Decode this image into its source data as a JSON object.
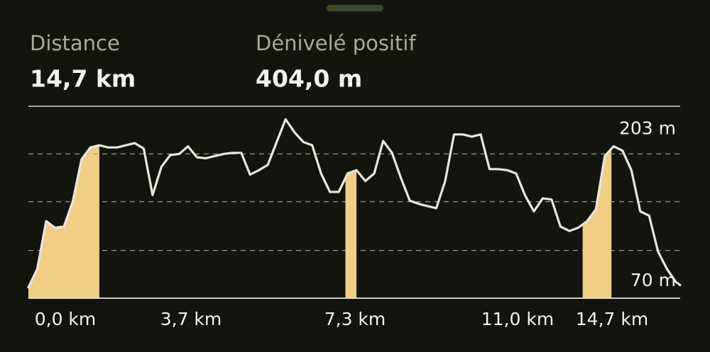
{
  "stats": [
    {
      "label": "Distance",
      "value": "14,7 km"
    },
    {
      "label": "Dénivelé positif",
      "value": "404,0 m"
    }
  ],
  "chart_data": {
    "type": "line",
    "x": [
      0,
      0.2,
      0.4,
      0.6,
      0.8,
      1.0,
      1.2,
      1.4,
      1.6,
      1.8,
      2.0,
      2.2,
      2.4,
      2.6,
      2.8,
      3.0,
      3.2,
      3.4,
      3.6,
      3.8,
      4.0,
      4.2,
      4.4,
      4.6,
      4.8,
      5.0,
      5.2,
      5.4,
      5.6,
      5.8,
      6.0,
      6.2,
      6.4,
      6.6,
      6.8,
      7.0,
      7.2,
      7.4,
      7.6,
      7.8,
      8.0,
      8.2,
      8.4,
      8.6,
      8.8,
      9.0,
      9.2,
      9.4,
      9.6,
      9.8,
      10.0,
      10.2,
      10.4,
      10.6,
      10.8,
      11.0,
      11.2,
      11.4,
      11.6,
      11.8,
      12.0,
      12.2,
      12.4,
      12.6,
      12.8,
      13.0,
      13.2,
      13.4,
      13.6,
      13.8,
      14.0,
      14.2,
      14.4,
      14.6,
      14.7
    ],
    "series": [
      {
        "color": "#e8e6df",
        "values": [
          80,
          97,
          141,
          135,
          136,
          159,
          198,
          209,
          211,
          209,
          209,
          211,
          213,
          208,
          165,
          191,
          202,
          203,
          210,
          200,
          199,
          201,
          203,
          204,
          204,
          184,
          188,
          193,
          214,
          235,
          223,
          214,
          211,
          185,
          168,
          168,
          185,
          188,
          178,
          185,
          215,
          204,
          181,
          160,
          157,
          155,
          153,
          178,
          221,
          221,
          219,
          221,
          189,
          189,
          188,
          185,
          165,
          150,
          162,
          161,
          136,
          132,
          135,
          141,
          152,
          201,
          210,
          206,
          188,
          150,
          146,
          113,
          97,
          85,
          82
        ]
      }
    ],
    "xlim": [
      0,
      14.7
    ],
    "ylim": [
      70,
      247
    ],
    "yticks": [
      {
        "value": 203,
        "label": "203 m"
      },
      {
        "value": 70,
        "label": "70 m"
      }
    ],
    "minor_gridlines": [
      114,
      159
    ],
    "xlabels": [
      "0,0 km",
      "3,7 km",
      "7,3 km",
      "11,0 km",
      "14,7 km"
    ],
    "highlights": [
      [
        0,
        1.6
      ],
      [
        7.15,
        7.4
      ],
      [
        12.5,
        13.15
      ]
    ],
    "highlight_color": "#f2cd86"
  }
}
